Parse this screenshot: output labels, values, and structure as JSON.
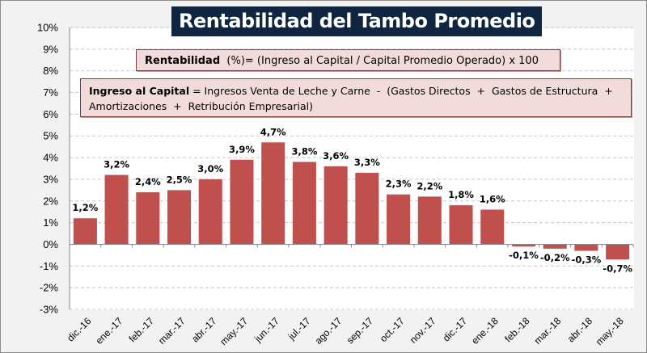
{
  "title": "Rentabilidad del Tambo Promedio",
  "formula_box": {
    "bold_label": "Rentabilidad",
    "text": "  (%)= (Ingreso al Capital / Capital Promedio Operado) x 100"
  },
  "definition_box": {
    "bold_label": "Ingreso al Capital",
    "line1": " = Ingresos Venta de Leche y Carne  -  (Gastos Directos  +  Gastos de Estructura  +",
    "line2": "Amortizaciones  +  Retribución Empresarial)"
  },
  "colors": {
    "bar": "#c0504d",
    "title_bg": "#0f2540",
    "box_bg": "#f2dcdb",
    "background": "#f2f2f2"
  },
  "chart_data": {
    "type": "bar",
    "title": "Rentabilidad del Tambo Promedio",
    "xlabel": "",
    "ylabel": "",
    "ylim": [
      -3,
      10
    ],
    "yticks": [
      10,
      9,
      8,
      7,
      6,
      5,
      4,
      3,
      2,
      1,
      0,
      -1,
      -2,
      -3
    ],
    "ytick_labels": [
      "10%",
      "9%",
      "8%",
      "7%",
      "6%",
      "5%",
      "4%",
      "3%",
      "2%",
      "1%",
      "0%",
      "-1%",
      "-2%",
      "-3%"
    ],
    "grid": true,
    "legend": "none",
    "categories": [
      "dic.-16",
      "ene.-17",
      "feb.-17",
      "mar.-17",
      "abr.-17",
      "may.-17",
      "jun.-17",
      "jul.-17",
      "ago.-17",
      "sep.-17",
      "oct.-17",
      "nov.-17",
      "dic.-17",
      "ene.-18",
      "feb.-18",
      "mar.-18",
      "abr.-18",
      "may.-18"
    ],
    "values": [
      1.2,
      3.2,
      2.4,
      2.5,
      3.0,
      3.9,
      4.7,
      3.8,
      3.6,
      3.3,
      2.3,
      2.2,
      1.8,
      1.6,
      -0.1,
      -0.2,
      -0.3,
      -0.7
    ],
    "data_labels": [
      "1,2%",
      "3,2%",
      "2,4%",
      "2,5%",
      "3,0%",
      "3,9%",
      "4,7%",
      "3,8%",
      "3,6%",
      "3,3%",
      "2,3%",
      "2,2%",
      "1,8%",
      "1,6%",
      "-0,1%",
      "-0,2%",
      "-0,3%",
      "-0,7%"
    ]
  }
}
